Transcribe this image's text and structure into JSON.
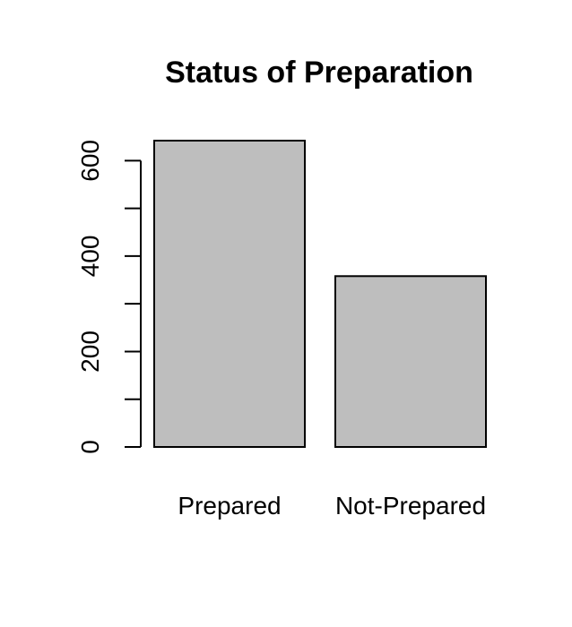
{
  "chart_data": {
    "type": "bar",
    "title": "Status of Preparation",
    "categories": [
      "Prepared",
      "Not-Prepared"
    ],
    "values": [
      642,
      358
    ],
    "ylim": [
      0,
      642
    ],
    "yticks": [
      0,
      100,
      200,
      300,
      400,
      500,
      600
    ],
    "ytick_labels": [
      "0",
      "",
      "200",
      "",
      "400",
      "",
      "600"
    ],
    "xlabel": "",
    "ylabel": "",
    "grid": false,
    "bar_color": "#bebebe"
  }
}
